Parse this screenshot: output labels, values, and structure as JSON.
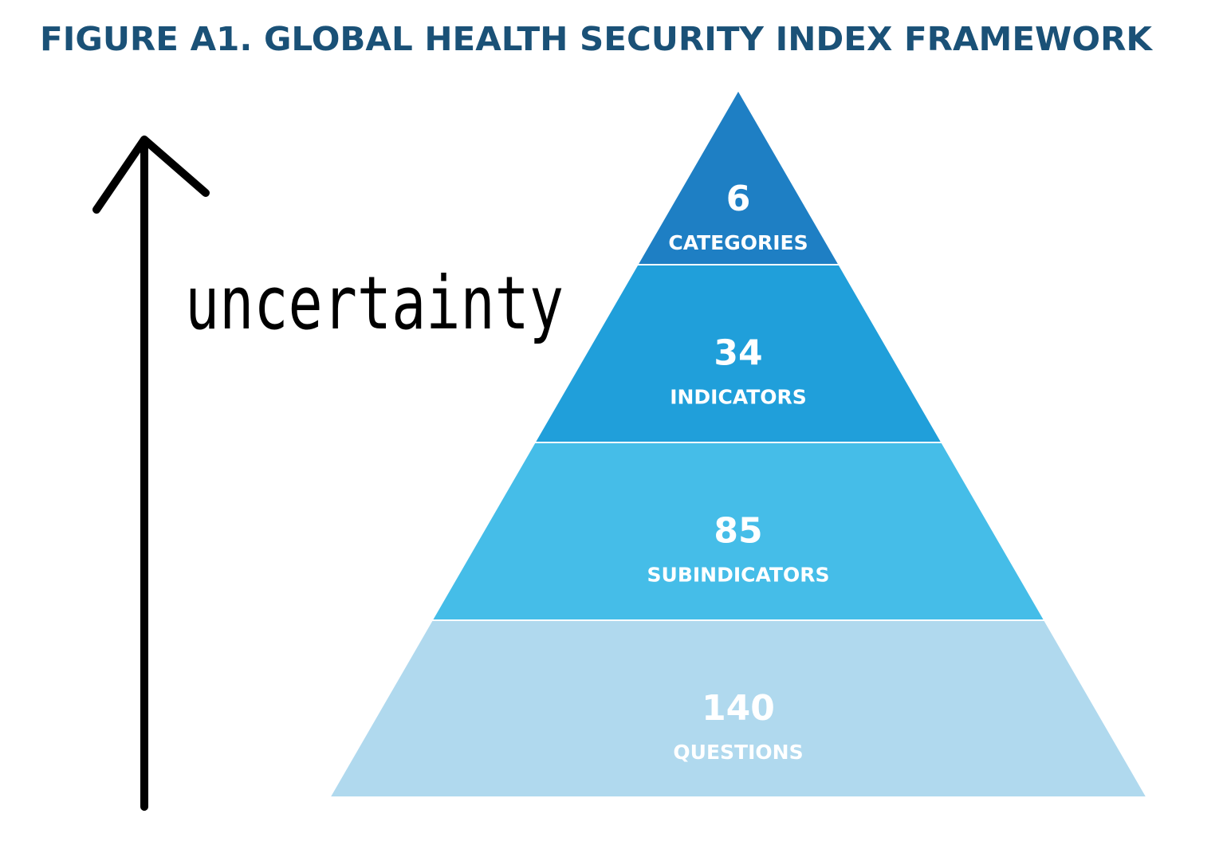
{
  "title": "FIGURE A1. GLOBAL HEALTH SECURITY INDEX FRAMEWORK",
  "annotation": "uncertainty",
  "levels": [
    {
      "number": 6,
      "label": "CATEGORIES"
    },
    {
      "number": 34,
      "label": "INDICATORS"
    },
    {
      "number": 85,
      "label": "SUBINDICATORS"
    },
    {
      "number": 140,
      "label": "QUESTIONS"
    }
  ]
}
